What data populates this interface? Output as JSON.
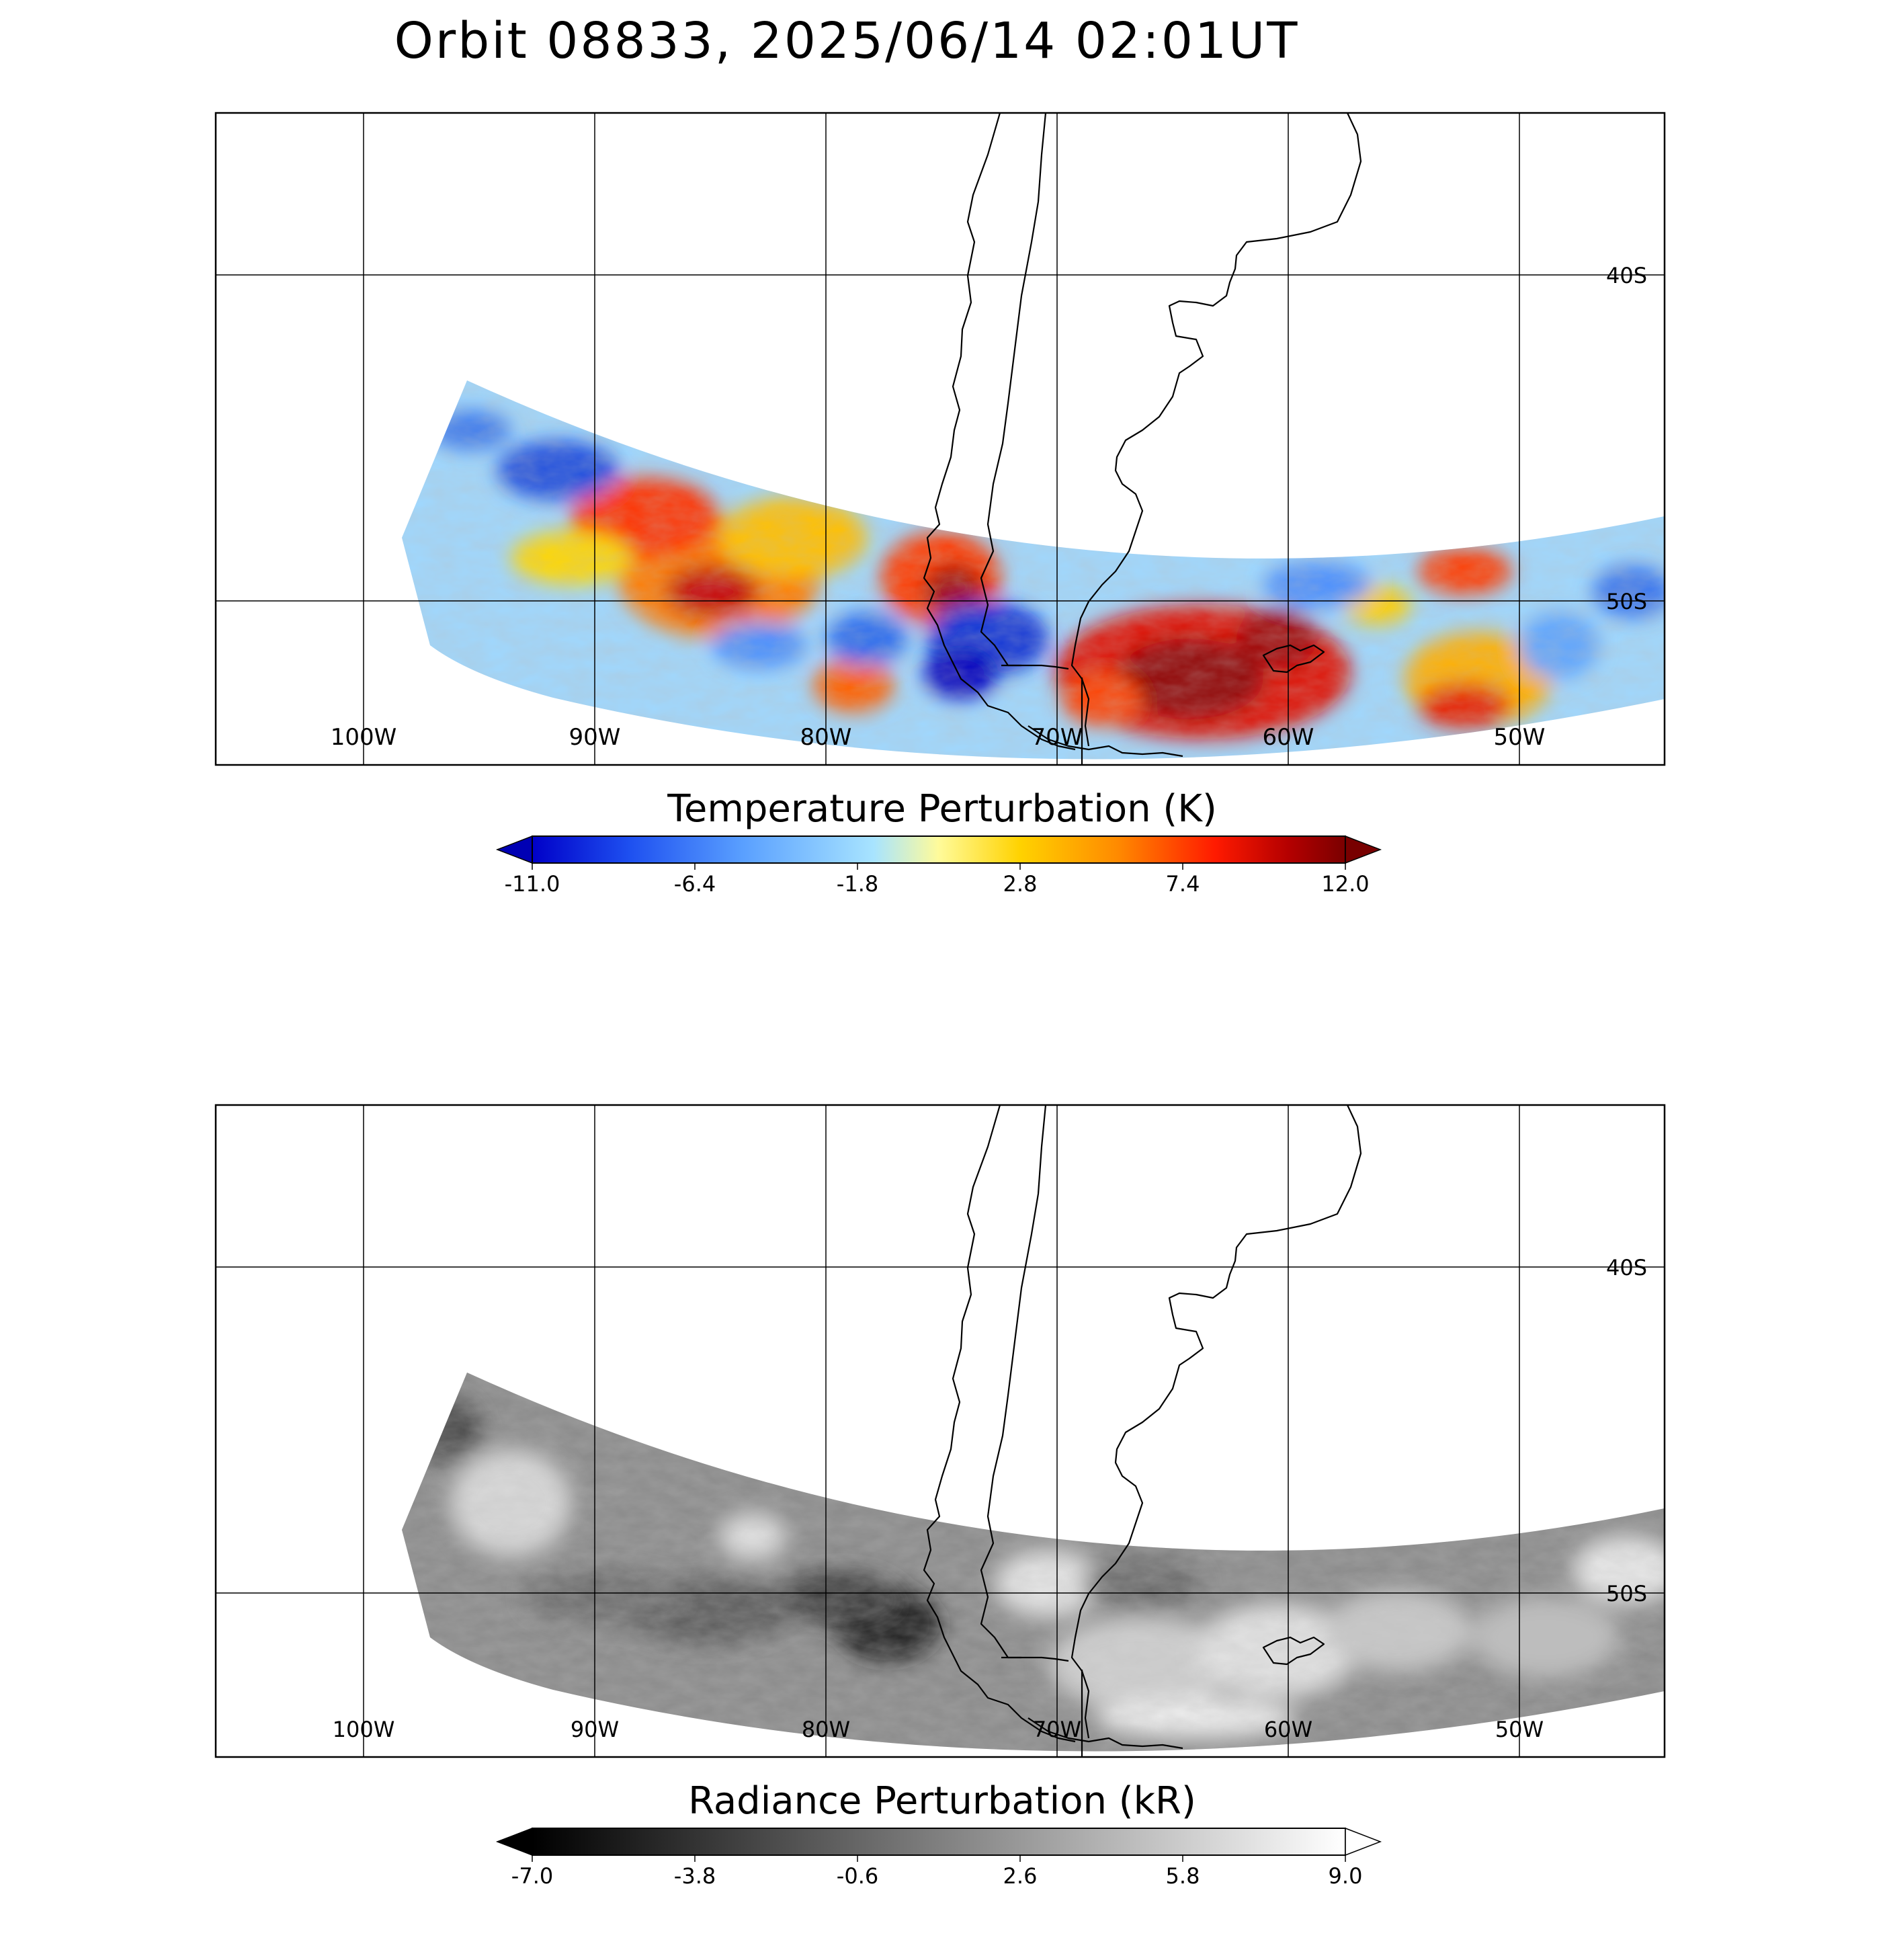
{
  "title": "Orbit 08833, 2025/06/14 02:01UT",
  "map": {
    "lon_labels": [
      "100W",
      "90W",
      "80W",
      "70W",
      "60W",
      "50W"
    ],
    "lat_labels": [
      "40S",
      "50S"
    ],
    "projection": "cylindrical",
    "lon_range": [
      -106.5,
      -43.7
    ],
    "lat_range": [
      -35.0,
      -55.0
    ]
  },
  "panels": [
    {
      "id": "temperature",
      "colorbar_title": "Temperature Perturbation (K)",
      "colorbar_ticks": [
        "-11.0",
        "-6.4",
        "-1.8",
        "2.8",
        "7.4",
        "12.0"
      ],
      "vmin": -11.0,
      "vmax": 12.0,
      "colormap": [
        "#0000c8",
        "#1e50f0",
        "#5aa0ff",
        "#a8e4ff",
        "#fffb9a",
        "#ffd200",
        "#ff8a00",
        "#ff1a00",
        "#b40000",
        "#7a0000"
      ],
      "under_color": "#0000b4",
      "over_color": "#780000"
    },
    {
      "id": "radiance",
      "colorbar_title": "Radiance Perturbation (kR)",
      "colorbar_ticks": [
        "-7.0",
        "-3.8",
        "-0.6",
        "2.6",
        "5.8",
        "9.0"
      ],
      "vmin": -7.0,
      "vmax": 9.0,
      "colormap": [
        "#000000",
        "#ffffff"
      ],
      "under_color": "#000000",
      "over_color": "#ffffff"
    }
  ]
}
